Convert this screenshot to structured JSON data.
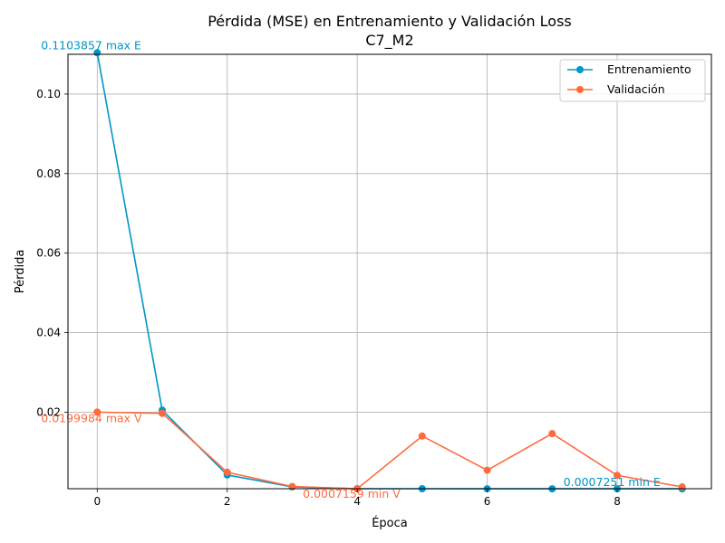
{
  "chart_data": {
    "type": "line",
    "title": "Pérdida (MSE) en Entrenamiento y Validación Loss",
    "subtitle": "C7_M2",
    "xlabel": "Época",
    "ylabel": "Pérdida",
    "x": [
      0,
      1,
      2,
      3,
      4,
      5,
      6,
      7,
      8,
      9
    ],
    "xlim": [
      -0.45,
      9.45
    ],
    "ylim": [
      0.00075,
      0.11
    ],
    "xticks": [
      0,
      2,
      4,
      6,
      8
    ],
    "xtick_labels": [
      "0",
      "2",
      "4",
      "6",
      "8"
    ],
    "yticks": [
      0.02,
      0.04,
      0.06,
      0.08,
      0.1
    ],
    "ytick_labels": [
      "0.02",
      "0.04",
      "0.06",
      "0.08",
      "0.10"
    ],
    "grid": true,
    "legend_position": "top-right",
    "series": [
      {
        "name": "Entrenamiento",
        "color": "#0096c8",
        "values": [
          0.1103857,
          0.0205,
          0.0042,
          0.0012,
          0.00075,
          0.00075,
          0.00073,
          0.000725,
          0.00073,
          0.000725
        ]
      },
      {
        "name": "Validación",
        "color": "#ff6a3d",
        "values": [
          0.0199984,
          0.0197,
          0.0049,
          0.0013,
          0.0007159,
          0.014,
          0.0054,
          0.0146,
          0.0041,
          0.0012
        ]
      }
    ],
    "annotations": [
      {
        "text": "0.1103857 max E",
        "x": 0,
        "y": 0.1103857,
        "series": 0
      },
      {
        "text": "0.0199984 max V",
        "x": 0,
        "y": 0.0199984,
        "series": 1
      },
      {
        "text": "0.0007159 min V",
        "x": 4,
        "y": 0.0007159,
        "series": 1
      },
      {
        "text": "0.0007251 min E",
        "x": 9,
        "y": 0.000725,
        "series": 0
      }
    ]
  }
}
